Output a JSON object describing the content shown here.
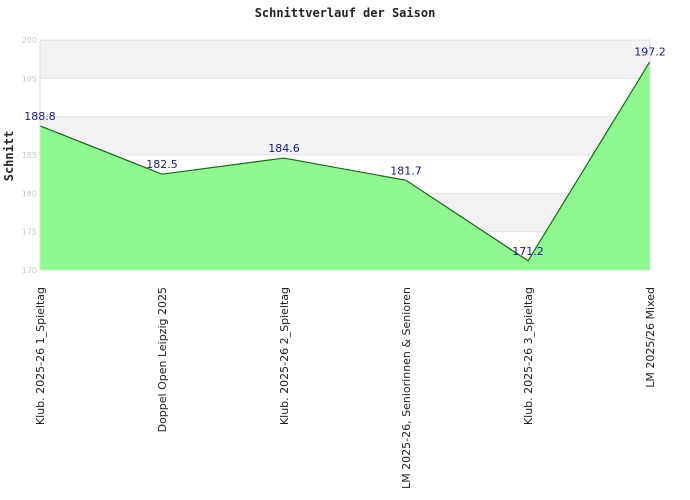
{
  "chart_data": {
    "type": "area",
    "title": "Schnittverlauf der Saison",
    "xlabel": "",
    "ylabel": "Schnitt",
    "categories": [
      "Klub. 2025-26  1_Spieltag",
      "Doppel Open Leipzig 2025",
      "Klub. 2025-26  2_Spieltag",
      "LM 2025-26, Seniorinnen & Senioren",
      "Klub. 2025-26  3_Spieltag",
      "LM 2025/26 Mixed"
    ],
    "series": [
      {
        "values": [
          188.8,
          182.5,
          184.6,
          181.7,
          171.2,
          197.2
        ]
      }
    ],
    "data_labels": [
      "188.8",
      "182.5",
      "184.6",
      "181.7",
      "171.2",
      "197.2"
    ],
    "yticks": [
      170,
      175,
      180,
      185,
      195,
      200
    ],
    "ytick_labels": [
      "170",
      "175",
      "180",
      "185",
      "195",
      "200"
    ],
    "ylim": [
      170,
      200
    ],
    "grid": true,
    "colors": {
      "fill": "#90f890",
      "line": "#007800",
      "band": "#f2f2f2",
      "grid": "#e4e4e4",
      "data_label": "#1a1a80"
    }
  }
}
